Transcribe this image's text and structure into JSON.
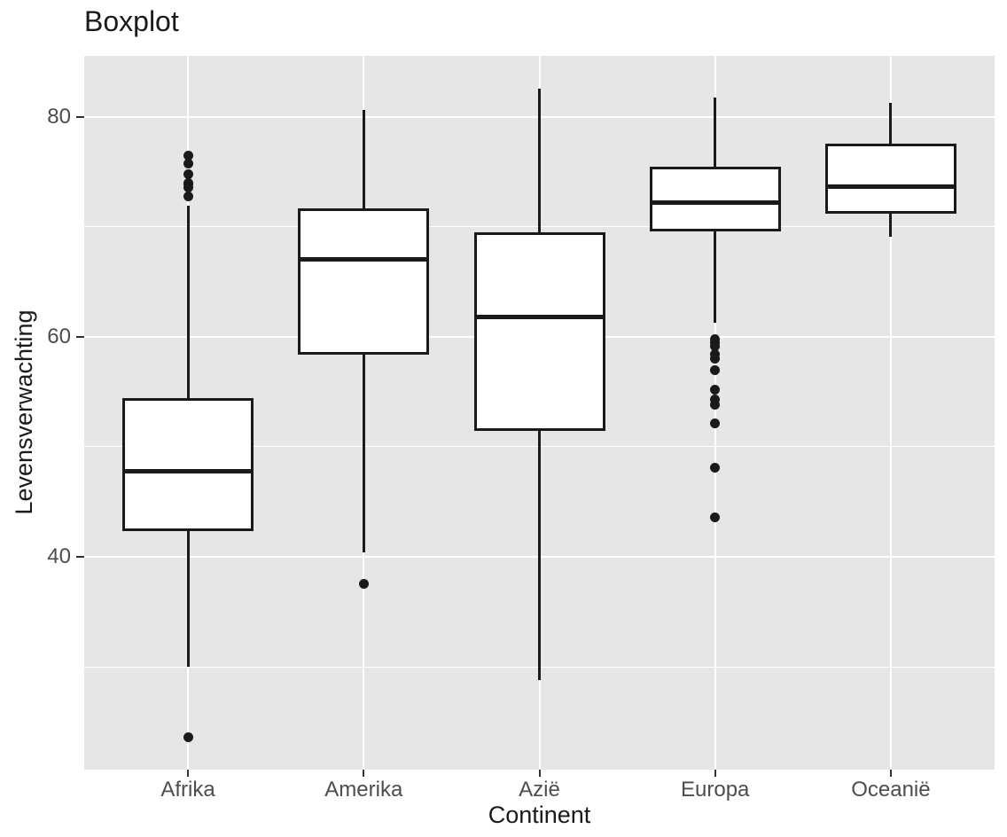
{
  "chart_data": {
    "type": "boxplot",
    "title": "Boxplot",
    "xlabel": "Continent",
    "ylabel": "Levensverwachting",
    "ylim": [
      20.65,
      85.55
    ],
    "yticks": [
      40,
      60,
      80
    ],
    "yminor_gridlines": [
      30,
      50,
      70
    ],
    "grid": "major and minor horizontal white lines, major vertical white line per category, grey panel",
    "legend": "none",
    "categories": [
      "Afrika",
      "Amerika",
      "Azië",
      "Europa",
      "Oceanië"
    ],
    "series": [
      {
        "name": "Afrika",
        "whisker_low": 30.0,
        "q1": 42.37,
        "median": 47.79,
        "q3": 54.41,
        "whisker_high": 71.95,
        "outliers": [
          23.599,
          72.801,
          73.615,
          73.923,
          73.952,
          74.772,
          75.744,
          76.442
        ]
      },
      {
        "name": "Amerika",
        "whisker_low": 40.41,
        "q1": 58.41,
        "median": 67.05,
        "q3": 71.7,
        "whisker_high": 80.65,
        "outliers": [
          37.579
        ]
      },
      {
        "name": "Azië",
        "whisker_low": 28.8,
        "q1": 51.43,
        "median": 61.79,
        "q3": 69.51,
        "whisker_high": 82.6,
        "outliers": []
      },
      {
        "name": "Europa",
        "whisker_low": 61.31,
        "q1": 69.57,
        "median": 72.24,
        "q3": 75.46,
        "whisker_high": 81.76,
        "outliers": [
          59.82,
          59.507,
          59.164,
          58.45,
          57.996,
          57.005,
          55.23,
          54.336,
          53.82,
          52.098,
          48.079,
          43.585
        ]
      },
      {
        "name": "Oceanië",
        "whisker_low": 69.12,
        "q1": 71.2,
        "median": 73.66,
        "q3": 77.55,
        "whisker_high": 81.24,
        "outliers": []
      }
    ],
    "colors": {
      "panel_bg": "#E6E6E6",
      "grid": "#FFFFFF",
      "box_fill": "#FFFFFF",
      "line": "#1A1A1A",
      "tick_label": "#4D4D4D",
      "text": "#1A1A1A"
    }
  }
}
